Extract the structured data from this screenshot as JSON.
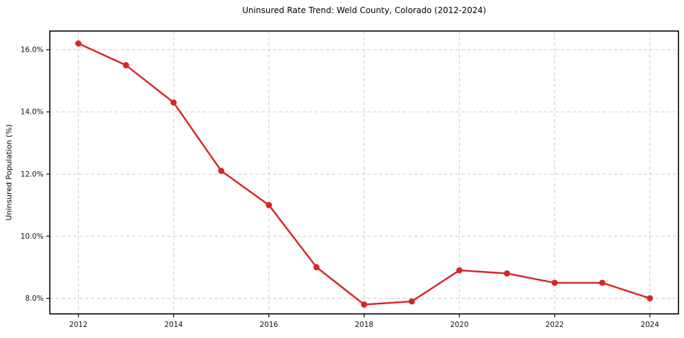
{
  "chart_data": {
    "type": "line",
    "title": "Uninsured Rate Trend: Weld County, Colorado (2012-2024)",
    "xlabel": "",
    "ylabel": "Uninsured Population (%)",
    "x": [
      2012,
      2013,
      2014,
      2015,
      2016,
      2017,
      2018,
      2019,
      2020,
      2021,
      2022,
      2023,
      2024
    ],
    "series": [
      {
        "name": "Uninsured rate",
        "values": [
          16.2,
          15.5,
          14.3,
          12.1,
          11.0,
          9.0,
          7.8,
          7.9,
          8.9,
          8.8,
          8.5,
          8.5,
          8.0
        ],
        "color": "#d62728",
        "marker": "circle",
        "line_width": 2.5,
        "marker_radius": 4.5
      }
    ],
    "xticks": [
      2012,
      2014,
      2016,
      2018,
      2020,
      2022,
      2024
    ],
    "xtick_labels": [
      "2012",
      "2014",
      "2016",
      "2018",
      "2020",
      "2022",
      "2024"
    ],
    "yticks": [
      8,
      10,
      12,
      14,
      16
    ],
    "ytick_labels": [
      "8.0%",
      "10.0%",
      "12.0%",
      "14.0%",
      "16.0%"
    ],
    "xlim": [
      2011.4,
      2024.6
    ],
    "ylim": [
      7.5,
      16.6
    ],
    "grid": true,
    "grid_style": "dashed",
    "legend": "none",
    "colors": {
      "grid": "#cccccc",
      "spine": "#000000",
      "tick": "#000000",
      "text": "#111111",
      "background": "#ffffff"
    }
  }
}
